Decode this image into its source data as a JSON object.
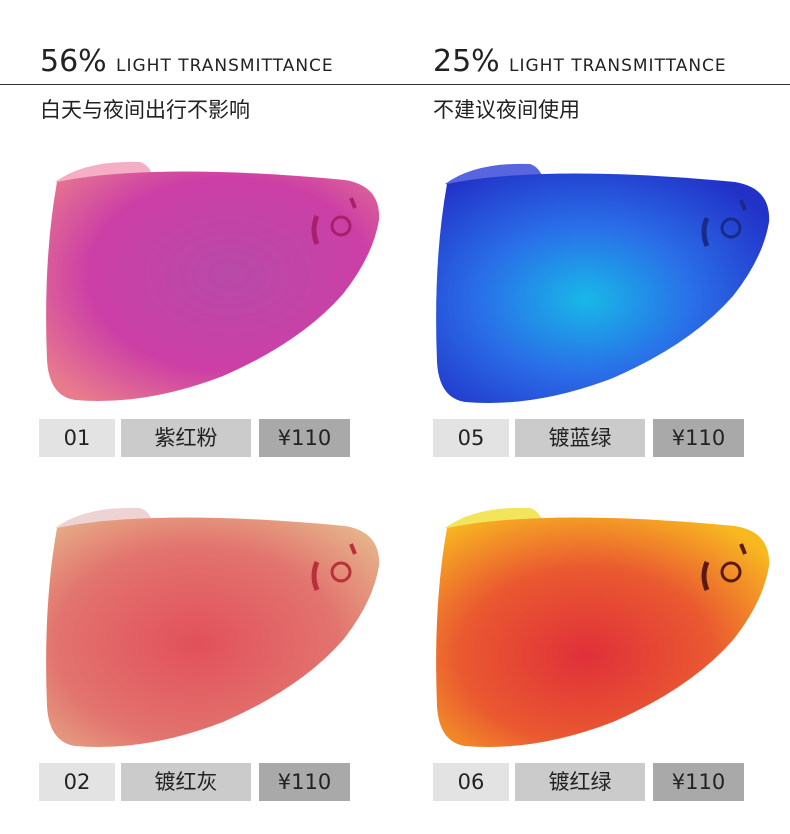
{
  "columns": [
    {
      "percent": "56%",
      "label": "LIGHT TRANSMITTANCE",
      "note": "白天与夜间出行不影响"
    },
    {
      "percent": "25%",
      "label": "LIGHT TRANSMITTANCE",
      "note": "不建议夜间使用"
    }
  ],
  "products": [
    {
      "code": "01",
      "name": "紫红粉",
      "price": "¥110"
    },
    {
      "code": "05",
      "name": "镀蓝绿",
      "price": "¥110"
    },
    {
      "code": "02",
      "name": "镀红灰",
      "price": "¥110"
    },
    {
      "code": "06",
      "name": "镀红绿",
      "price": "¥110"
    }
  ]
}
